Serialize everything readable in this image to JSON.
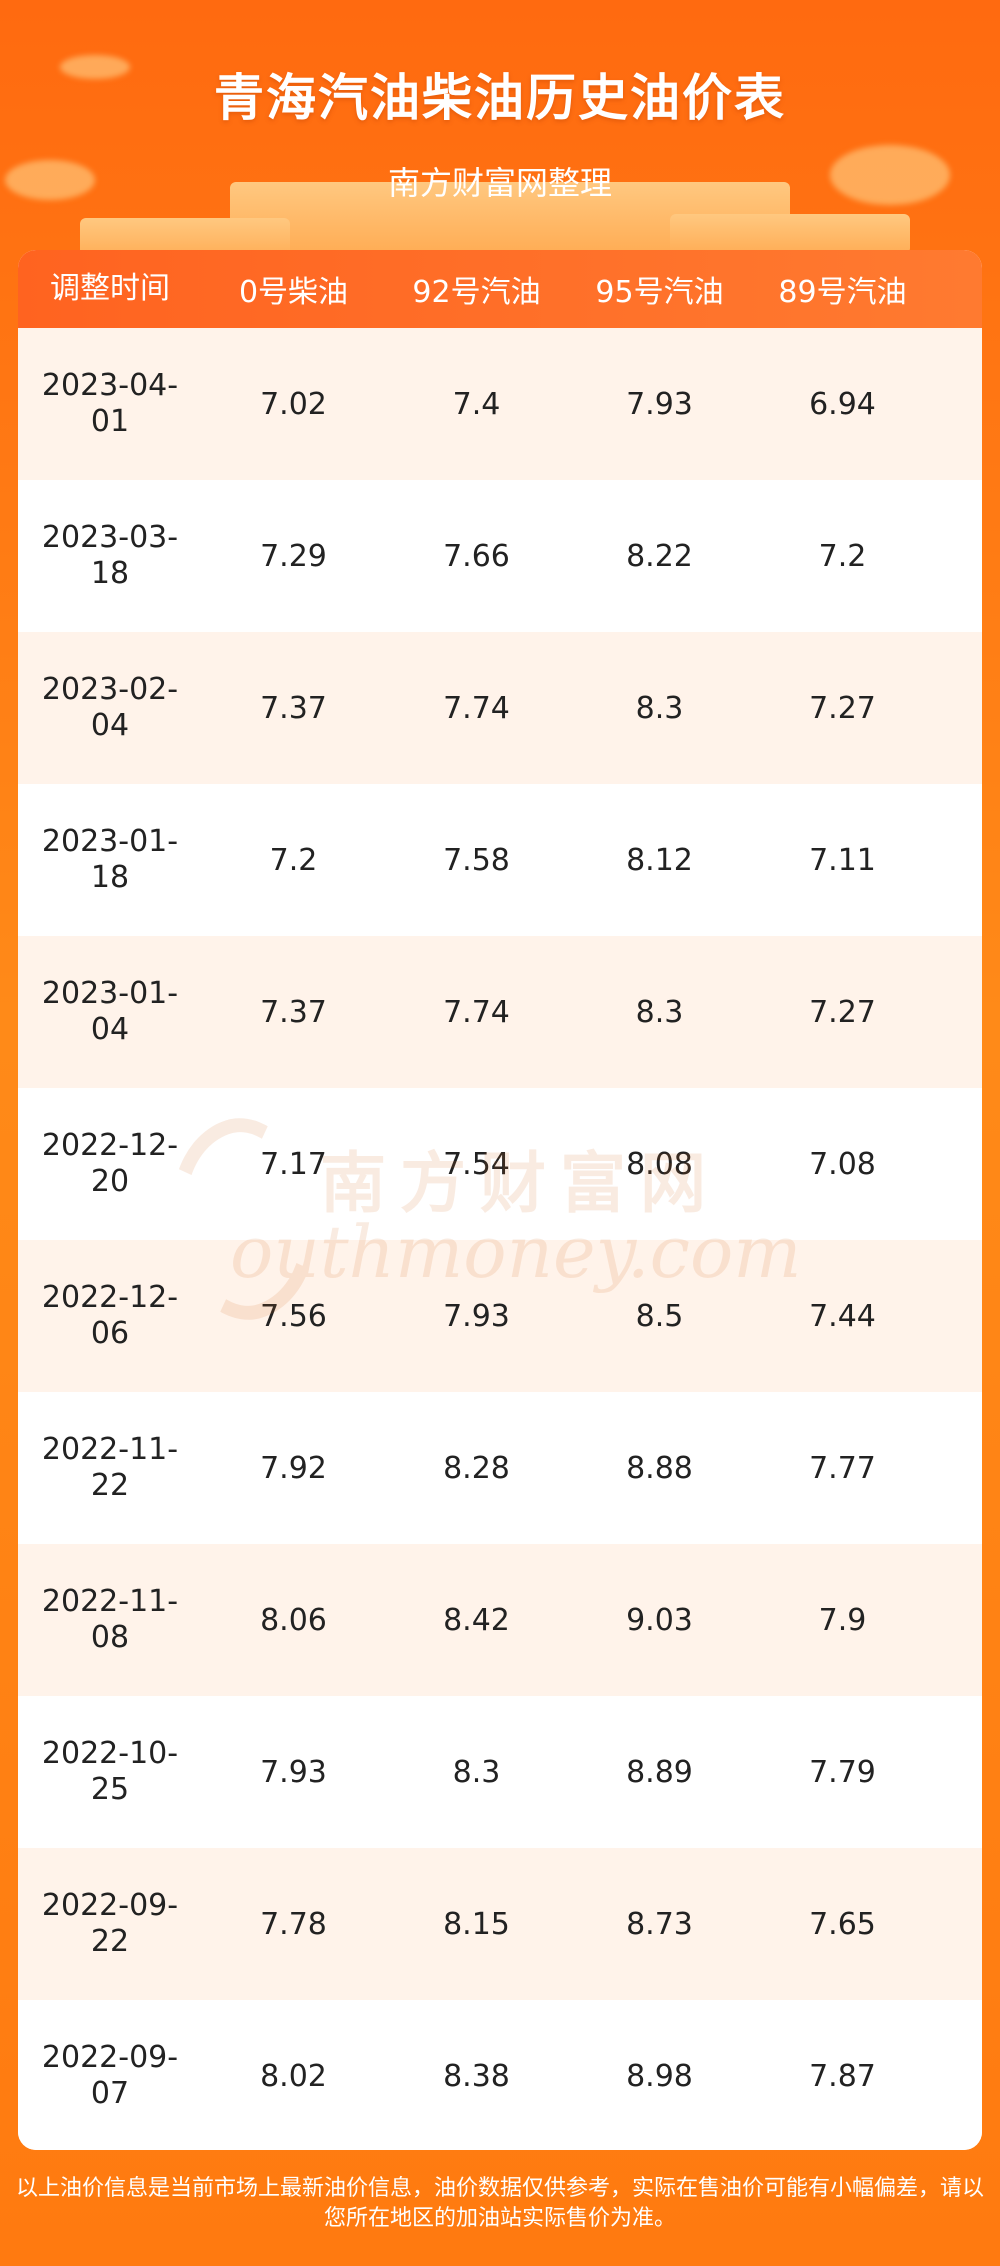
{
  "header": {
    "title": "青海汽油柴油历史油价表",
    "subtitle": "南方财富网整理"
  },
  "table": {
    "columns": [
      "调整时间",
      "0号柴油",
      "92号汽油",
      "95号汽油",
      "89号汽油"
    ],
    "rows": [
      {
        "date_line1": "2023-04-",
        "date_line2": "01",
        "diesel0": "7.02",
        "gas92": "7.4",
        "gas95": "7.93",
        "gas89": "6.94"
      },
      {
        "date_line1": "2023-03-",
        "date_line2": "18",
        "diesel0": "7.29",
        "gas92": "7.66",
        "gas95": "8.22",
        "gas89": "7.2"
      },
      {
        "date_line1": "2023-02-",
        "date_line2": "04",
        "diesel0": "7.37",
        "gas92": "7.74",
        "gas95": "8.3",
        "gas89": "7.27"
      },
      {
        "date_line1": "2023-01-",
        "date_line2": "18",
        "diesel0": "7.2",
        "gas92": "7.58",
        "gas95": "8.12",
        "gas89": "7.11"
      },
      {
        "date_line1": "2023-01-",
        "date_line2": "04",
        "diesel0": "7.37",
        "gas92": "7.74",
        "gas95": "8.3",
        "gas89": "7.27"
      },
      {
        "date_line1": "2022-12-",
        "date_line2": "20",
        "diesel0": "7.17",
        "gas92": "7.54",
        "gas95": "8.08",
        "gas89": "7.08"
      },
      {
        "date_line1": "2022-12-",
        "date_line2": "06",
        "diesel0": "7.56",
        "gas92": "7.93",
        "gas95": "8.5",
        "gas89": "7.44"
      },
      {
        "date_line1": "2022-11-",
        "date_line2": "22",
        "diesel0": "7.92",
        "gas92": "8.28",
        "gas95": "8.88",
        "gas89": "7.77"
      },
      {
        "date_line1": "2022-11-",
        "date_line2": "08",
        "diesel0": "8.06",
        "gas92": "8.42",
        "gas95": "9.03",
        "gas89": "7.9"
      },
      {
        "date_line1": "2022-10-",
        "date_line2": "25",
        "diesel0": "7.93",
        "gas92": "8.3",
        "gas95": "8.89",
        "gas89": "7.79"
      },
      {
        "date_line1": "2022-09-",
        "date_line2": "22",
        "diesel0": "7.78",
        "gas92": "8.15",
        "gas95": "8.73",
        "gas89": "7.65"
      },
      {
        "date_line1": "2022-09-",
        "date_line2": "07",
        "diesel0": "8.02",
        "gas92": "8.38",
        "gas95": "8.98",
        "gas89": "7.87"
      }
    ]
  },
  "watermark": {
    "cn": "南方财富网",
    "en": "outhmoney.com"
  },
  "footer": {
    "note": "以上油价信息是当前市场上最新油价信息，油价数据仅供参考，实际在售油价可能有小幅偏差，请以您所在地区的加油站实际售价为准。"
  },
  "colors": {
    "background": "#ff7a10",
    "header_row": "#ff6a28",
    "stripe": "#fff3ea"
  }
}
